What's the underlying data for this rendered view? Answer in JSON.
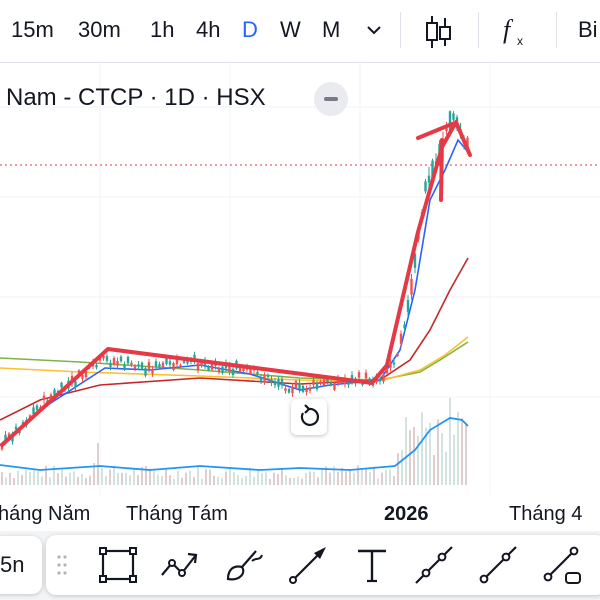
{
  "toolbar": {
    "timeframes": [
      {
        "label": "15m",
        "active": false
      },
      {
        "label": "30m",
        "active": false
      },
      {
        "label": "1h",
        "active": false
      },
      {
        "label": "4h",
        "active": false
      },
      {
        "label": "D",
        "active": true
      },
      {
        "label": "W",
        "active": false
      },
      {
        "label": "M",
        "active": false
      }
    ],
    "more_icon": "chevron-down-icon",
    "chart_type_icon": "candlestick-icon",
    "indicators_icon": "fx-icon",
    "cut_label": "Bi"
  },
  "chart": {
    "title": "Nam - CTCP · 1D · HSX",
    "colors": {
      "up": "#26a69a",
      "down": "#ef5350",
      "trend_drawing": "#e53945",
      "ma_blue": "#2962ff",
      "ma_red": "#c62828",
      "ma_yellow": "#fbc02d",
      "ma_green": "#7cb342",
      "volume_line": "#2196f3",
      "price_line": "#e53945"
    }
  },
  "time_axis": {
    "labels": [
      "háng Năm",
      "Tháng Tám",
      "2026",
      "Tháng 4"
    ]
  },
  "drawing_toolbar": {
    "left_label": "5n",
    "tools": [
      "rectangle-icon",
      "polyline-icon",
      "brush-icon",
      "arrow-icon",
      "text-icon",
      "trend-line-icon",
      "ray-icon",
      "extended-line-icon"
    ]
  }
}
